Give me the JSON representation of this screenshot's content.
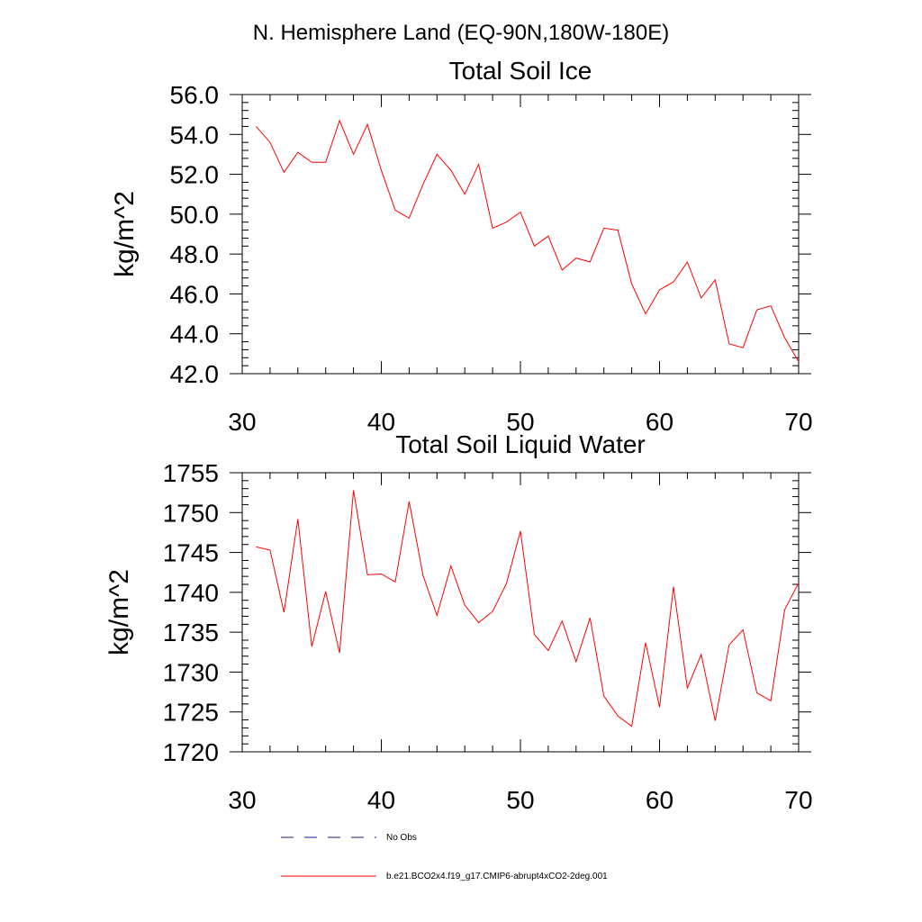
{
  "figure_title": "N. Hemisphere Land (EQ-90N,180W-180E)",
  "chart_data": [
    {
      "type": "line",
      "title": "Total Soil Ice",
      "xlabel": "",
      "ylabel": "kg/m^2",
      "xlim": [
        30,
        70
      ],
      "ylim": [
        42.0,
        56.0
      ],
      "x_ticks": [
        30,
        40,
        50,
        60,
        70
      ],
      "x_tick_labels": [
        "30",
        "40",
        "50",
        "60",
        "70"
      ],
      "y_ticks": [
        42,
        44,
        46,
        48,
        50,
        52,
        54,
        56
      ],
      "y_tick_labels": [
        "42.0",
        "44.0",
        "46.0",
        "48.0",
        "50.0",
        "52.0",
        "54.0",
        "56.0"
      ],
      "grid": false,
      "series": [
        {
          "color": "#ff0000",
          "x": [
            31,
            32,
            33,
            34,
            35,
            36,
            37,
            38,
            39,
            40,
            41,
            42,
            43,
            44,
            45,
            46,
            47,
            48,
            49,
            50,
            51,
            52,
            53,
            54,
            55,
            56,
            57,
            58,
            59,
            60,
            61,
            62,
            63,
            64,
            65,
            66,
            67,
            68,
            69,
            70
          ],
          "values": [
            54.4,
            53.6,
            52.1,
            53.1,
            52.6,
            52.6,
            54.7,
            53.0,
            54.5,
            52.2,
            50.2,
            49.8,
            51.5,
            53.0,
            52.2,
            51.0,
            52.5,
            49.3,
            49.6,
            50.1,
            48.4,
            48.9,
            47.2,
            47.8,
            47.6,
            49.3,
            49.2,
            46.5,
            45.0,
            46.2,
            46.6,
            47.6,
            45.8,
            46.7,
            43.5,
            43.3,
            45.2,
            45.4,
            43.8,
            42.6
          ]
        }
      ]
    },
    {
      "type": "line",
      "title": "Total Soil Liquid Water",
      "xlabel": "",
      "ylabel": "kg/m^2",
      "xlim": [
        30,
        70
      ],
      "ylim": [
        1720,
        1755
      ],
      "x_ticks": [
        30,
        40,
        50,
        60,
        70
      ],
      "x_tick_labels": [
        "30",
        "40",
        "50",
        "60",
        "70"
      ],
      "y_ticks": [
        1720,
        1725,
        1730,
        1735,
        1740,
        1745,
        1750,
        1755
      ],
      "y_tick_labels": [
        "1720",
        "1725",
        "1730",
        "1735",
        "1740",
        "1745",
        "1750",
        "1755"
      ],
      "grid": false,
      "series": [
        {
          "color": "#ff0000",
          "x": [
            31,
            32,
            33,
            34,
            35,
            36,
            37,
            38,
            39,
            40,
            41,
            42,
            43,
            44,
            45,
            46,
            47,
            48,
            49,
            50,
            51,
            52,
            53,
            54,
            55,
            56,
            57,
            58,
            59,
            60,
            61,
            62,
            63,
            64,
            65,
            66,
            67,
            68,
            69,
            70
          ],
          "values": [
            1745.7,
            1745.3,
            1737.5,
            1749.2,
            1733.2,
            1740.1,
            1732.4,
            1752.8,
            1742.2,
            1742.3,
            1741.3,
            1751.4,
            1742.1,
            1737.1,
            1743.3,
            1738.4,
            1736.2,
            1737.6,
            1741.1,
            1747.7,
            1734.7,
            1732.7,
            1736.4,
            1731.3,
            1736.8,
            1727.0,
            1724.5,
            1723.2,
            1733.7,
            1725.6,
            1740.7,
            1728.0,
            1732.2,
            1723.9,
            1733.4,
            1735.3,
            1727.4,
            1726.4,
            1737.8,
            1741.2
          ]
        }
      ]
    }
  ],
  "legend": [
    {
      "label": "No Obs",
      "color": "#1a1a8c",
      "style": "dashed"
    },
    {
      "label": "b.e21.BCO2x4.f19_g17.CMIP6-abrupt4xCO2-2deg.001",
      "color": "#ff0000",
      "style": "solid"
    }
  ]
}
